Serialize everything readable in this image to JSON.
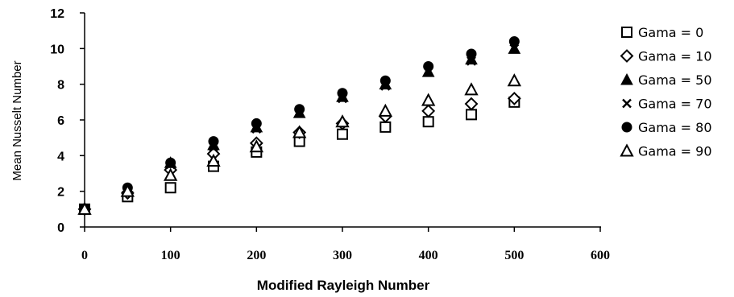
{
  "chart_data": {
    "type": "scatter",
    "title": "",
    "xlabel": "Modified Rayleigh Number",
    "ylabel": "Mean Nusselt Number",
    "xlim": [
      0,
      600
    ],
    "ylim": [
      0,
      12
    ],
    "xticks": [
      0,
      100,
      200,
      300,
      400,
      500,
      600
    ],
    "yticks": [
      0,
      2,
      4,
      6,
      8,
      10,
      12
    ],
    "grid": false,
    "legend_position": "right",
    "x": [
      0,
      50,
      100,
      150,
      200,
      250,
      300,
      350,
      400,
      450,
      500
    ],
    "series": [
      {
        "name": "Gama = 0",
        "marker": "square-open",
        "values": [
          1.0,
          1.7,
          2.2,
          3.4,
          4.2,
          4.8,
          5.2,
          5.6,
          5.9,
          6.3,
          7.0
        ]
      },
      {
        "name": "Gama = 10",
        "marker": "diamond-open",
        "values": [
          1.0,
          1.9,
          3.2,
          4.1,
          4.7,
          5.3,
          5.8,
          6.2,
          6.5,
          6.9,
          7.2
        ]
      },
      {
        "name": "Gama = 50",
        "marker": "triangle-filled",
        "values": [
          1.0,
          2.0,
          3.6,
          4.6,
          5.6,
          6.4,
          7.3,
          8.0,
          8.7,
          9.4,
          10.0
        ]
      },
      {
        "name": "Gama = 70",
        "marker": "x",
        "values": [
          1.0,
          2.0,
          3.5,
          4.5,
          5.5,
          6.4,
          7.2,
          7.9,
          8.7,
          9.3,
          10.0
        ]
      },
      {
        "name": "Gama = 80",
        "marker": "circle-filled",
        "values": [
          1.0,
          2.2,
          3.6,
          4.8,
          5.8,
          6.6,
          7.5,
          8.2,
          9.0,
          9.7,
          10.4
        ]
      },
      {
        "name": "Gama = 90",
        "marker": "triangle-open",
        "values": [
          1.0,
          2.0,
          2.9,
          3.7,
          4.5,
          5.3,
          5.9,
          6.5,
          7.1,
          7.7,
          8.2
        ]
      }
    ]
  }
}
